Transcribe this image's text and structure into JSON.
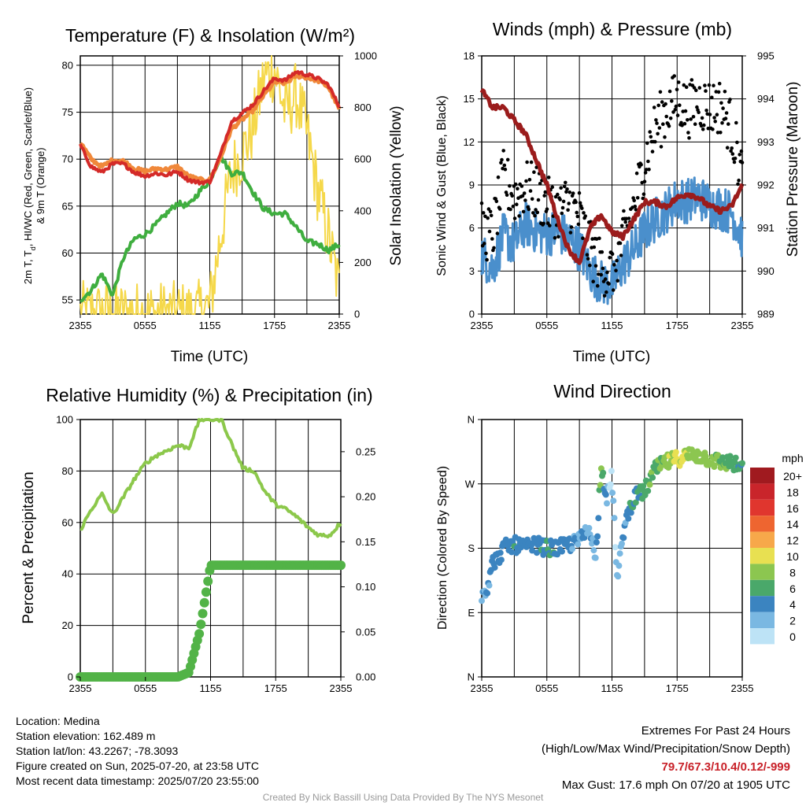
{
  "panels": {
    "temperature": {
      "title": "Temperature (F) & Insolation (W/m²)",
      "ylabel_left_line1": "2m T, T",
      "ylabel_left_sub": "d",
      "ylabel_left_line1_rest": ", HI/WC (Red, Green, Scarlet/Blue)",
      "ylabel_left_line2": "& 9m T (Orange)",
      "ylabel_right": "Solar Insolation (Yellow)",
      "xlabel": "Time (UTC)"
    },
    "winds": {
      "title": "Winds (mph) & Pressure (mb)",
      "ylabel_left": "Sonic Wind & Gust (Blue, Black)",
      "ylabel_right": "Station Pressure (Maroon)",
      "xlabel": "Time (UTC)"
    },
    "humidity": {
      "title": "Relative Humidity (%) & Precipitation (in)",
      "ylabel_left": "Percent & Precipitation"
    },
    "direction": {
      "title": "Wind Direction",
      "ylabel_left": "Direction (Colored By Speed)",
      "legend_title": "mph",
      "legend_labels": [
        "20+",
        "18",
        "16",
        "14",
        "12",
        "10",
        "8",
        "6",
        "4",
        "2",
        "0"
      ],
      "legend_colors": [
        "#a01a1f",
        "#c9252b",
        "#e0362e",
        "#ee6530",
        "#f7a84a",
        "#e8e051",
        "#8cc650",
        "#4aa86a",
        "#3b84c0",
        "#7ab8e2",
        "#bde3f6"
      ]
    }
  },
  "chart_data": [
    {
      "type": "line",
      "title": "Temperature (F) & Insolation (W/m²)",
      "xlabel": "Time (UTC)",
      "ylabel": "2m T, Td, HI/WC (Red, Green, Scarlet/Blue) & 9m T (Orange)",
      "ylabel_right": "Solar Insolation (Yellow)",
      "x_tick_labels": [
        "2355",
        "0555",
        "1155",
        "1755",
        "2355"
      ],
      "y_ticks": [
        55,
        60,
        65,
        70,
        75,
        80
      ],
      "y2_ticks": [
        0,
        200,
        400,
        600,
        800,
        1000
      ],
      "ylim": [
        53.5,
        81
      ],
      "y2lim": [
        0,
        1000
      ],
      "x_hours": [
        0,
        1,
        2,
        3,
        4,
        5,
        6,
        7,
        8,
        9,
        10,
        11,
        12,
        13,
        14,
        15,
        16,
        17,
        18,
        19,
        20,
        21,
        22,
        23,
        24
      ],
      "series": [
        {
          "name": "2m T",
          "color": "#d42a28",
          "axis": "left",
          "values": [
            71.5,
            69.2,
            68.6,
            69.5,
            69.5,
            68.6,
            68.2,
            68.5,
            68.3,
            68.7,
            67.8,
            67.5,
            67.6,
            70.5,
            74.0,
            74.9,
            75.8,
            77.3,
            78.6,
            78.4,
            79.3,
            79.0,
            78.6,
            77.9,
            75.6
          ]
        },
        {
          "name": "9m T",
          "color": "#f0883a",
          "axis": "left",
          "values": [
            71.8,
            70.0,
            69.2,
            69.9,
            69.8,
            69.0,
            68.7,
            69.0,
            68.9,
            69.2,
            68.2,
            67.8,
            67.8,
            70.2,
            73.2,
            74.2,
            75.2,
            76.8,
            78.2,
            78.1,
            78.9,
            78.7,
            78.4,
            77.7,
            75.3
          ]
        },
        {
          "name": "2m Td",
          "color": "#3fae3f",
          "axis": "left",
          "values": [
            55.0,
            56.0,
            57.8,
            55.5,
            59.5,
            61.5,
            62.0,
            63.0,
            64.2,
            65.3,
            65.0,
            66.5,
            67.7,
            70.3,
            68.5,
            68.6,
            66.5,
            64.7,
            64.2,
            64.2,
            62.8,
            61.2,
            61.0,
            60.3,
            60.9
          ]
        },
        {
          "name": "Solar Insolation",
          "color": "#f5d84a",
          "axis": "right",
          "values": [
            0,
            0,
            0,
            0,
            0,
            0,
            0,
            0,
            0,
            0,
            0,
            5,
            30,
            300,
            550,
            620,
            720,
            910,
            950,
            780,
            850,
            700,
            480,
            300,
            90
          ]
        }
      ]
    },
    {
      "type": "line",
      "title": "Winds (mph) & Pressure (mb)",
      "xlabel": "Time (UTC)",
      "ylabel": "Sonic Wind & Gust (Blue, Black)",
      "ylabel_right": "Station Pressure (Maroon)",
      "x_tick_labels": [
        "2355",
        "0555",
        "1155",
        "1755",
        "2355"
      ],
      "y_ticks": [
        0,
        3,
        6,
        9,
        12,
        15,
        18
      ],
      "y2_ticks": [
        989,
        990,
        991,
        992,
        993,
        994,
        995
      ],
      "ylim": [
        0,
        18
      ],
      "y2lim": [
        989,
        995
      ],
      "x_hours": [
        0,
        1,
        2,
        3,
        4,
        5,
        6,
        7,
        8,
        9,
        10,
        11,
        12,
        13,
        14,
        15,
        16,
        17,
        18,
        19,
        20,
        21,
        22,
        23,
        24
      ],
      "series": [
        {
          "name": "Sonic Wind",
          "color": "#4a8fcc",
          "axis": "left",
          "values": [
            4.2,
            3.2,
            5.5,
            4.8,
            6.3,
            5.8,
            5.6,
            5.8,
            5.2,
            4.6,
            3.0,
            2.2,
            2.0,
            3.4,
            4.5,
            5.8,
            6.6,
            7.2,
            8.0,
            7.9,
            8.2,
            7.6,
            7.4,
            7.1,
            5.4
          ]
        },
        {
          "name": "Gust",
          "color": "#000000",
          "axis": "left",
          "style": "dots",
          "values": [
            5.8,
            5.5,
            9.5,
            8.2,
            8.8,
            8.5,
            7.6,
            7.2,
            7.8,
            6.8,
            4.5,
            3.3,
            3.0,
            5.0,
            7.5,
            10.5,
            13.0,
            14.2,
            15.0,
            14.2,
            14.8,
            14.4,
            14.5,
            13.0,
            9.5
          ]
        },
        {
          "name": "Station Pressure",
          "color": "#9b1c1c",
          "axis": "right",
          "values": [
            994.2,
            993.8,
            993.8,
            993.5,
            993.2,
            992.6,
            992.0,
            991.2,
            990.5,
            990.2,
            991.0,
            991.3,
            990.9,
            990.8,
            991.2,
            991.6,
            991.6,
            991.5,
            991.7,
            991.8,
            991.7,
            991.5,
            991.4,
            991.5,
            992.0
          ]
        }
      ]
    },
    {
      "type": "line",
      "title": "Relative Humidity (%) & Precipitation (in)",
      "ylabel": "Percent & Precipitation",
      "x_tick_labels": [
        "2355",
        "0555",
        "1155",
        "1755",
        "2355"
      ],
      "y_ticks": [
        0,
        20,
        40,
        60,
        80,
        100
      ],
      "y2_ticks": [
        0.0,
        0.05,
        0.1,
        0.15,
        0.2,
        0.25
      ],
      "ylim": [
        0,
        100
      ],
      "y2lim": [
        0,
        0.2857
      ],
      "x_hours": [
        0,
        1,
        2,
        3,
        4,
        5,
        6,
        7,
        8,
        9,
        10,
        11,
        12,
        13,
        14,
        15,
        16,
        17,
        18,
        19,
        20,
        21,
        22,
        23,
        24
      ],
      "series": [
        {
          "name": "Relative Humidity",
          "color": "#8cc84b",
          "axis": "left",
          "values": [
            57,
            65,
            71,
            63,
            70,
            77,
            83,
            86,
            88,
            90,
            89,
            100,
            100,
            100,
            90,
            81,
            80,
            72,
            67,
            65,
            62,
            58,
            55,
            55,
            60
          ]
        },
        {
          "name": "Precipitation",
          "color": "#52b347",
          "axis": "right",
          "style": "dots",
          "values": [
            0,
            0,
            0,
            0,
            0,
            0,
            0,
            0,
            0,
            0,
            0.005,
            0.05,
            0.124,
            0.124,
            0.124,
            0.124,
            0.124,
            0.124,
            0.124,
            0.124,
            0.124,
            0.124,
            0.124,
            0.124,
            0.124
          ]
        }
      ]
    },
    {
      "type": "scatter",
      "title": "Wind Direction",
      "ylabel": "Direction (Colored By Speed)",
      "x_tick_labels": [
        "2355",
        "0555",
        "1155",
        "1755",
        "2355"
      ],
      "y_tick_labels": [
        "N",
        "E",
        "S",
        "W",
        "N"
      ],
      "y_ticks_deg": [
        0,
        90,
        180,
        270,
        360
      ],
      "ylim": [
        0,
        360
      ],
      "legend_title": "mph",
      "x_hours": [
        0,
        0.5,
        1,
        1.5,
        2,
        3,
        4,
        5,
        6,
        7,
        8,
        9,
        9.5,
        10,
        10.5,
        11,
        11.5,
        12,
        12.5,
        13,
        13.5,
        14,
        15,
        16,
        17,
        18,
        19,
        20,
        21,
        22,
        23,
        24
      ],
      "direction_deg": [
        115,
        125,
        160,
        165,
        180,
        185,
        180,
        185,
        180,
        180,
        185,
        190,
        200,
        210,
        160,
        300,
        250,
        280,
        130,
        200,
        230,
        250,
        260,
        290,
        300,
        305,
        310,
        310,
        305,
        300,
        300,
        290
      ],
      "speed_mph": [
        3,
        3,
        4,
        4,
        4,
        5,
        4,
        4,
        5,
        4,
        4,
        3,
        3,
        3,
        2,
        8,
        2,
        1,
        1,
        3,
        4,
        5,
        6,
        7,
        8,
        10,
        8,
        8,
        8,
        7,
        6,
        5
      ]
    }
  ],
  "footer": {
    "location": "Location: Medina",
    "elevation": "Station elevation: 162.489 m",
    "latlon": "Station lat/lon: 43.2267; -78.3093",
    "created": "Figure created on Sun, 2025-07-20, at 23:58 UTC",
    "recent": "Most recent data timestamp: 2025/07/20 23:55:00",
    "extremes_title": "Extremes For Past 24 Hours",
    "extremes_subtitle": "(High/Low/Max Wind/Precipitation/Snow Depth)",
    "extremes_values": "79.7/67.3/10.4/0.12/-999",
    "max_gust": "Max Gust: 17.6 mph On 07/20 at 1905 UTC",
    "credit": "Created By Nick Bassill Using Data Provided By The NYS Mesonet"
  }
}
